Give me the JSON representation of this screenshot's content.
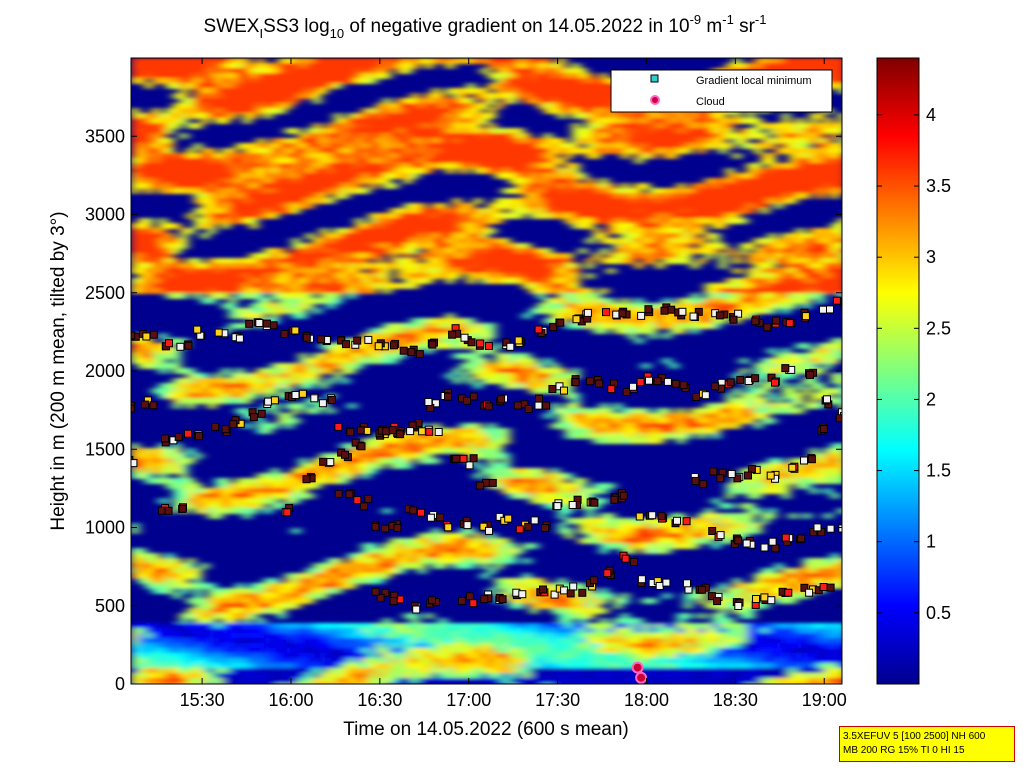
{
  "title": {
    "prefix": "SWEX",
    "sub1": "I",
    "mid": "SS3 log",
    "sub2": "10",
    "rest": " of negative gradient on 14.05.2022 in 10",
    "exp1": "-9",
    "unit1": " m",
    "exp2": "-1",
    "unit2": " sr",
    "exp3": "-1"
  },
  "xlabel": "Time on 14.05.2022 (600 s mean)",
  "ylabel": "Height in m (200 m mean, tilted by 3°)",
  "info_box": [
    "3.5XEFUV 5 [100 2500] NH 600",
    "MB 200 RG 15% TI 0 HI 15"
  ],
  "colors": {
    "gradient_marker": "#33cccc",
    "cloud_marker_face": "#cc0033",
    "cloud_marker_edge": "#ff66cc"
  },
  "chart_data": {
    "type": "heatmap",
    "colormap": "jet",
    "x_unit": "time (hours)",
    "xlim": [
      15.1,
      19.1
    ],
    "ylim": [
      0,
      4000
    ],
    "x_ticks": [
      15.5,
      16.0,
      16.5,
      17.0,
      17.5,
      18.0,
      18.5,
      19.0
    ],
    "x_tick_labels": [
      "15:30",
      "16:00",
      "16:30",
      "17:00",
      "17:30",
      "18:00",
      "18:30",
      "19:00"
    ],
    "y_ticks": [
      0,
      500,
      1000,
      1500,
      2000,
      2500,
      3000,
      3500
    ],
    "y_tick_labels": [
      "0",
      "500",
      "1000",
      "1500",
      "2000",
      "2500",
      "3000",
      "3500"
    ],
    "colorbar": {
      "range": [
        0,
        4.4
      ],
      "ticks": [
        0.5,
        1,
        1.5,
        2,
        2.5,
        3,
        3.5,
        4
      ],
      "tick_labels": [
        "0.5",
        "1",
        "1.5",
        "2",
        "2.5",
        "3",
        "3.5",
        "4"
      ]
    },
    "legend": {
      "placement": "top-right",
      "entries": [
        "Gradient local minimum",
        "Cloud"
      ]
    },
    "series": [
      {
        "name": "Gradient local minimum",
        "marker": "square",
        "layers": [
          {
            "points": [
              [
                15.1,
                2220
              ],
              [
                15.2,
                2230
              ],
              [
                15.3,
                2180
              ],
              [
                15.4,
                2160
              ],
              [
                15.5,
                2240
              ],
              [
                15.6,
                2230
              ],
              [
                15.7,
                2210
              ],
              [
                15.8,
                2300
              ],
              [
                15.9,
                2280
              ],
              [
                16.0,
                2250
              ],
              [
                16.1,
                2220
              ],
              [
                16.2,
                2200
              ],
              [
                16.3,
                2180
              ],
              [
                16.4,
                2190
              ],
              [
                16.5,
                2170
              ],
              [
                16.6,
                2150
              ],
              [
                16.7,
                2120
              ],
              [
                16.8,
                2190
              ],
              [
                16.9,
                2250
              ],
              [
                17.0,
                2200
              ],
              [
                17.1,
                2180
              ],
              [
                17.2,
                2170
              ],
              [
                17.3,
                2200
              ],
              [
                17.4,
                2250
              ],
              [
                17.5,
                2300
              ],
              [
                17.6,
                2330
              ],
              [
                17.7,
                2350
              ],
              [
                17.8,
                2380
              ],
              [
                17.9,
                2380
              ],
              [
                18.0,
                2370
              ],
              [
                18.1,
                2390
              ],
              [
                18.2,
                2380
              ],
              [
                18.3,
                2360
              ],
              [
                18.4,
                2350
              ],
              [
                18.5,
                2350
              ],
              [
                18.6,
                2330
              ],
              [
                18.7,
                2300
              ],
              [
                18.8,
                2320
              ],
              [
                18.9,
                2350
              ],
              [
                19.0,
                2400
              ],
              [
                19.1,
                2430
              ]
            ]
          },
          {
            "points": [
              [
                15.1,
                1780
              ],
              [
                15.2,
                1790
              ],
              [
                15.3,
                1560
              ],
              [
                15.4,
                1580
              ],
              [
                15.5,
                1580
              ],
              [
                15.6,
                1620
              ],
              [
                15.7,
                1680
              ],
              [
                15.8,
                1720
              ],
              [
                15.9,
                1800
              ],
              [
                16.0,
                1850
              ],
              [
                16.1,
                1840
              ],
              [
                16.2,
                1800
              ],
              [
                16.3,
                1620
              ],
              [
                16.4,
                1620
              ],
              [
                16.5,
                1600
              ],
              [
                16.6,
                1610
              ],
              [
                16.7,
                1650
              ],
              [
                16.8,
                1780
              ],
              [
                16.9,
                1850
              ],
              [
                17.0,
                1830
              ],
              [
                17.1,
                1760
              ],
              [
                17.2,
                1820
              ],
              [
                17.3,
                1780
              ],
              [
                17.4,
                1800
              ],
              [
                17.5,
                1900
              ],
              [
                17.6,
                1930
              ],
              [
                17.7,
                1930
              ],
              [
                17.8,
                1900
              ],
              [
                17.9,
                1880
              ],
              [
                18.0,
                1950
              ],
              [
                18.1,
                1930
              ],
              [
                18.2,
                1900
              ],
              [
                18.3,
                1850
              ],
              [
                18.4,
                1900
              ],
              [
                18.5,
                1920
              ],
              [
                18.6,
                1940
              ],
              [
                18.7,
                1950
              ],
              [
                18.8,
                2000
              ],
              [
                18.9,
                1970
              ],
              [
                19.0,
                1800
              ],
              [
                19.1,
                1760
              ]
            ]
          },
          {
            "points": [
              [
                15.1,
                1410
              ],
              [
                15.3,
                1130
              ],
              [
                15.4,
                1110
              ],
              [
                16.0,
                1120
              ],
              [
                16.1,
                1300
              ],
              [
                16.2,
                1400
              ],
              [
                16.3,
                1470
              ],
              [
                16.4,
                1520
              ],
              [
                16.5,
                1620
              ],
              [
                16.6,
                1620
              ],
              [
                16.7,
                1640
              ],
              [
                16.8,
                1600
              ],
              [
                16.9,
                1450
              ],
              [
                17.0,
                1420
              ],
              [
                17.1,
                1280
              ],
              [
                17.2,
                1050
              ],
              [
                17.3,
                1000
              ],
              [
                17.4,
                1020
              ],
              [
                17.5,
                1150
              ],
              [
                17.6,
                1160
              ],
              [
                17.7,
                1170
              ],
              [
                17.8,
                1170
              ],
              [
                17.9,
                1200
              ],
              [
                18.0,
                1080
              ],
              [
                18.1,
                1070
              ],
              [
                18.2,
                1050
              ],
              [
                18.3,
                1300
              ],
              [
                18.4,
                1340
              ],
              [
                18.5,
                1340
              ],
              [
                18.6,
                1350
              ],
              [
                18.7,
                1320
              ],
              [
                18.8,
                1370
              ],
              [
                18.9,
                1450
              ],
              [
                19.0,
                1620
              ],
              [
                19.1,
                1700
              ]
            ]
          },
          {
            "points": [
              [
                16.3,
                1200
              ],
              [
                16.4,
                1160
              ],
              [
                16.5,
                1000
              ],
              [
                16.6,
                1000
              ],
              [
                16.7,
                1100
              ],
              [
                16.8,
                1080
              ],
              [
                16.9,
                1000
              ],
              [
                17.0,
                1040
              ],
              [
                17.1,
                1000
              ],
              [
                18.4,
                960
              ],
              [
                18.5,
                920
              ],
              [
                18.6,
                900
              ],
              [
                18.7,
                890
              ],
              [
                18.8,
                920
              ],
              [
                18.9,
                950
              ],
              [
                19.0,
                980
              ],
              [
                19.1,
                990
              ]
            ]
          },
          {
            "points": [
              [
                16.5,
                570
              ],
              [
                16.6,
                550
              ],
              [
                16.7,
                500
              ],
              [
                16.8,
                520
              ],
              [
                17.0,
                540
              ],
              [
                17.1,
                550
              ],
              [
                17.2,
                550
              ],
              [
                17.3,
                570
              ],
              [
                17.4,
                590
              ],
              [
                17.5,
                590
              ],
              [
                17.6,
                600
              ],
              [
                17.7,
                640
              ],
              [
                17.8,
                720
              ],
              [
                17.9,
                800
              ],
              [
                18.0,
                650
              ],
              [
                18.1,
                640
              ],
              [
                18.2,
                620
              ],
              [
                18.3,
                590
              ],
              [
                18.4,
                550
              ],
              [
                18.5,
                500
              ],
              [
                18.6,
                520
              ],
              [
                18.7,
                560
              ],
              [
                18.8,
                580
              ],
              [
                18.9,
                590
              ],
              [
                19.0,
                600
              ]
            ]
          }
        ]
      },
      {
        "name": "Cloud",
        "marker": "circle",
        "points": [
          [
            17.95,
            105
          ],
          [
            17.97,
            40
          ]
        ]
      }
    ]
  }
}
